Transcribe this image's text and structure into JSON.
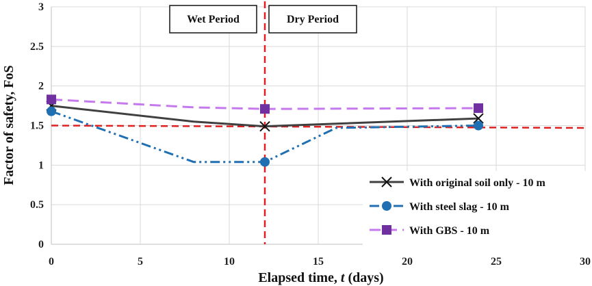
{
  "chart_data": {
    "type": "line",
    "title": "",
    "xlabel_prefix": "Elapsed time, ",
    "xlabel_var": "t",
    "xlabel_suffix": " (days)",
    "ylabel": "Factor of safety, FoS",
    "xlim": [
      0,
      30
    ],
    "ylim": [
      0,
      3
    ],
    "xticks": [
      0,
      5,
      10,
      15,
      20,
      25,
      30
    ],
    "yticks": [
      0,
      0.5,
      1,
      1.5,
      2,
      2.5,
      3
    ],
    "ytick_labels": [
      "0",
      "0.5",
      "1",
      "1.5",
      "2",
      "2.5",
      "3"
    ],
    "grid": true,
    "legend_position": "bottom-right",
    "series": [
      {
        "name": "With original soil only - 10 m",
        "color": "#404040",
        "dash": "solid",
        "marker": "x",
        "x": [
          0,
          8,
          12,
          24
        ],
        "y": [
          1.75,
          1.55,
          1.49,
          1.59
        ],
        "marked": [
          true,
          false,
          true,
          true
        ]
      },
      {
        "name": "With steel slag - 10 m",
        "color": "#1f6fb2",
        "dash": "dash-dot-dot",
        "marker": "circle",
        "x": [
          0,
          8,
          12,
          16,
          24
        ],
        "y": [
          1.68,
          1.04,
          1.04,
          1.47,
          1.5
        ],
        "marked": [
          true,
          false,
          true,
          false,
          true
        ]
      },
      {
        "name": "With GBS - 10 m",
        "color": "#c678ee",
        "marker_color": "#7030a0",
        "dash": "long-dash",
        "marker": "square",
        "x": [
          0,
          8,
          12,
          24
        ],
        "y": [
          1.83,
          1.73,
          1.71,
          1.72
        ],
        "marked": [
          true,
          false,
          true,
          true
        ]
      }
    ],
    "reference_lines": {
      "horizontal": {
        "y_start": 1.5,
        "y_end": 1.47,
        "color": "#e02020"
      },
      "vertical": {
        "x": 12,
        "color": "#e02020"
      }
    },
    "annotations": {
      "wet": "Wet Period",
      "dry": "Dry Period"
    }
  }
}
